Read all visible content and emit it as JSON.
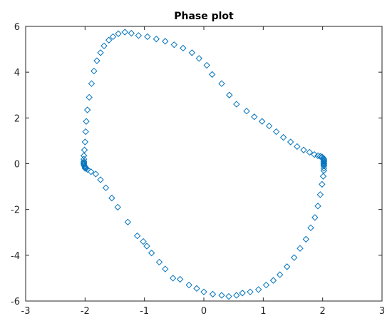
{
  "chart_data": {
    "type": "scatter",
    "title": "Phase plot",
    "xlabel": "",
    "ylabel": "",
    "xlim": [
      -3,
      3
    ],
    "ylim": [
      -6,
      6
    ],
    "xticks": [
      -3,
      -2,
      -1,
      0,
      1,
      2,
      3
    ],
    "yticks": [
      -6,
      -4,
      -2,
      0,
      2,
      4,
      6
    ],
    "xtick_labels": [
      "-3",
      "-2",
      "-1",
      "0",
      "1",
      "2",
      "3"
    ],
    "ytick_labels": [
      "-6",
      "-4",
      "-2",
      "0",
      "2",
      "4",
      "6"
    ],
    "grid": false,
    "legend": "none",
    "marker": "diamond",
    "color": "#0072BD",
    "series": [
      {
        "x": [
          -2.0,
          -1.96,
          -1.9,
          -1.82,
          -1.74,
          -1.65,
          -1.55,
          -1.45,
          -1.28,
          -1.12,
          -1.02,
          -0.96,
          -0.88,
          -0.75,
          -0.65,
          -0.52,
          -0.4,
          -0.25,
          -0.12,
          0.0,
          0.15,
          0.3,
          0.42,
          0.55,
          0.65,
          0.78,
          0.92,
          1.05,
          1.17,
          1.28,
          1.4,
          1.52,
          1.62,
          1.72,
          1.8,
          1.87,
          1.92,
          1.96,
          1.99,
          2.01,
          2.02,
          2.02,
          2.02,
          2.02,
          2.02,
          2.02,
          2.02,
          2.02,
          2.02,
          2.01,
          1.99,
          1.96,
          1.92,
          1.86,
          1.78,
          1.68,
          1.57,
          1.46,
          1.34,
          1.22,
          1.1,
          0.98,
          0.85,
          0.72,
          0.55,
          0.43,
          0.3,
          0.14,
          0.05,
          -0.08,
          -0.2,
          -0.35,
          -0.5,
          -0.65,
          -0.8,
          -0.95,
          -1.1,
          -1.22,
          -1.33,
          -1.44,
          -1.53,
          -1.6,
          -1.68,
          -1.74,
          -1.8,
          -1.85,
          -1.89,
          -1.93,
          -1.96,
          -1.98,
          -1.99,
          -2.0,
          -2.01,
          -2.02,
          -2.02,
          -2.02,
          -2.02,
          -2.02,
          -2.02,
          -2.01,
          -2.0,
          -1.99,
          -1.98
        ],
        "y": [
          -0.2,
          -0.25,
          -0.35,
          -0.45,
          -0.7,
          -1.05,
          -1.5,
          -1.9,
          -2.55,
          -3.15,
          -3.4,
          -3.6,
          -3.9,
          -4.3,
          -4.6,
          -5.0,
          -5.05,
          -5.3,
          -5.45,
          -5.6,
          -5.7,
          -5.75,
          -5.8,
          -5.75,
          -5.65,
          -5.6,
          -5.5,
          -5.3,
          -5.1,
          -4.85,
          -4.5,
          -4.1,
          -3.7,
          -3.3,
          -2.8,
          -2.35,
          -1.85,
          -1.35,
          -0.9,
          -0.55,
          -0.3,
          -0.2,
          -0.1,
          -0.05,
          0.0,
          0.05,
          0.1,
          0.15,
          0.2,
          0.25,
          0.3,
          0.32,
          0.35,
          0.4,
          0.5,
          0.6,
          0.75,
          0.95,
          1.15,
          1.4,
          1.65,
          1.85,
          2.05,
          2.3,
          2.6,
          3.0,
          3.5,
          3.9,
          4.3,
          4.6,
          4.85,
          5.05,
          5.2,
          5.35,
          5.45,
          5.55,
          5.6,
          5.7,
          5.75,
          5.68,
          5.55,
          5.4,
          5.15,
          4.85,
          4.5,
          4.05,
          3.5,
          2.9,
          2.35,
          1.85,
          1.4,
          0.95,
          0.6,
          0.35,
          0.2,
          0.1,
          0.05,
          0.0,
          -0.05,
          -0.1,
          -0.15,
          -0.18,
          -0.2
        ]
      }
    ]
  }
}
